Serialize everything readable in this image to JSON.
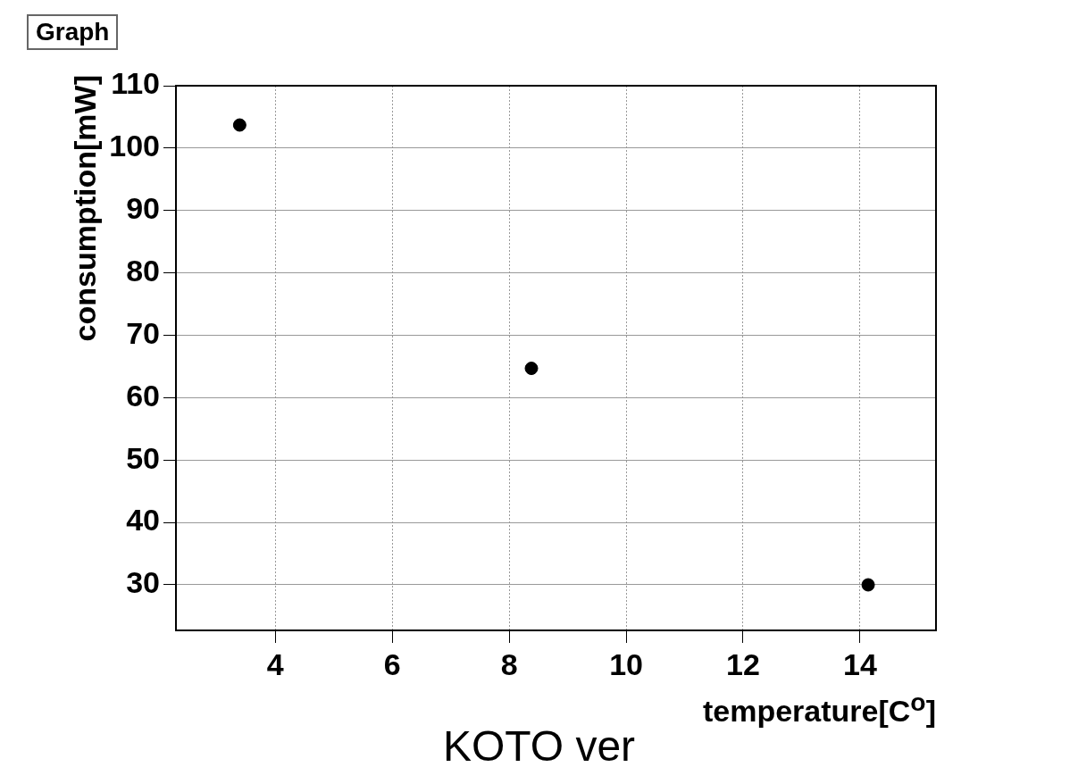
{
  "chart_data": {
    "type": "scatter",
    "title": "Graph",
    "xlabel": "temperature[C$^{o}$]",
    "ylabel": "consumption[mW]",
    "annotations": [
      "KOTO ver"
    ],
    "x": [
      3.39,
      8.38,
      14.14
    ],
    "series": [
      {
        "color": "#000000",
        "values": [
          103.7,
          64.7,
          30
        ]
      }
    ],
    "xlim": [
      2.3,
      15.3
    ],
    "xticks": [
      4,
      6,
      8,
      10,
      12,
      14
    ],
    "ylim": [
      22.7,
      110
    ],
    "yticks": [
      30,
      40,
      50,
      60,
      70,
      80,
      90,
      100,
      110
    ],
    "grid": true,
    "legend": false,
    "marker": "circle"
  }
}
